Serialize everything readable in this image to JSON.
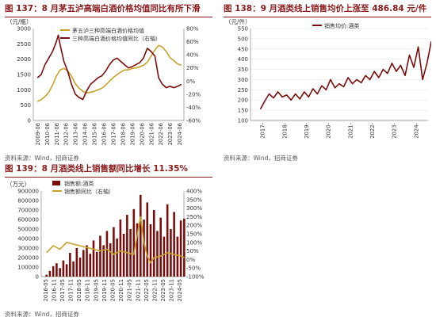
{
  "colors": {
    "maroon": "#7b0c0c",
    "gold": "#c9a227",
    "title": "#8b1a1a",
    "axis": "#888888"
  },
  "source_text": "资料来源：Wind，招商证券",
  "chart_data": [
    {
      "id": "c137",
      "type": "line",
      "title": "图 137：8 月茅五泸高端白酒价格均值同比有所下滑",
      "unit_left": "（元/瓶）",
      "y_left_ticks": [
        "0",
        "500",
        "1000",
        "1500",
        "2000",
        "2500",
        "3000"
      ],
      "y_right_ticks": [
        "-60%",
        "-40%",
        "-20%",
        "0%",
        "20%",
        "40%",
        "60%",
        "80%"
      ],
      "ylim_left": [
        0,
        3000
      ],
      "ylim_right": [
        -60,
        80
      ],
      "x_ticks": [
        "2009-06",
        "2010-06",
        "2011-06",
        "2012-06",
        "2013-06",
        "2014-06",
        "2015-06",
        "2016-06",
        "2017-06",
        "2018-06",
        "2019-06",
        "2020-06",
        "2021-06",
        "2022-06",
        "2023-06",
        "2024-06"
      ],
      "legend": [
        "茅五泸三种高端白酒价格均值",
        "三种高端白酒价格均值同比（右轴）"
      ],
      "series": [
        {
          "name": "茅五泸三种高端白酒价格均值",
          "axis": "left",
          "x": [
            2009.4,
            2009.8,
            2010.2,
            2010.6,
            2011.0,
            2011.4,
            2011.8,
            2012.2,
            2012.6,
            2013.0,
            2013.4,
            2013.8,
            2014.2,
            2014.6,
            2015.0,
            2015.4,
            2015.8,
            2016.2,
            2016.6,
            2017.0,
            2017.4,
            2017.8,
            2018.2,
            2018.6,
            2019.0,
            2019.4,
            2019.8,
            2020.2,
            2020.6,
            2021.0,
            2021.4,
            2021.8,
            2022.2,
            2022.6,
            2023.0,
            2023.4,
            2023.8,
            2024.2,
            2024.6
          ],
          "y": [
            620,
            680,
            780,
            920,
            1150,
            1450,
            1650,
            1700,
            1620,
            1450,
            1200,
            1050,
            950,
            900,
            920,
            950,
            1000,
            1050,
            1150,
            1280,
            1400,
            1500,
            1580,
            1650,
            1650,
            1700,
            1720,
            1750,
            1800,
            1900,
            2100,
            2300,
            2450,
            2400,
            2250,
            2050,
            1950,
            1850,
            1800
          ]
        },
        {
          "name": "三种高端白酒价格均值同比（右轴）",
          "axis": "right",
          "x": [
            2009.4,
            2009.8,
            2010.2,
            2010.6,
            2011.0,
            2011.4,
            2011.6,
            2011.8,
            2012.2,
            2012.6,
            2013.0,
            2013.4,
            2013.8,
            2014.2,
            2014.6,
            2015.0,
            2015.4,
            2015.8,
            2016.2,
            2016.6,
            2017.0,
            2017.4,
            2017.8,
            2018.2,
            2018.6,
            2019.0,
            2019.4,
            2019.8,
            2020.2,
            2020.6,
            2021.0,
            2021.4,
            2021.8,
            2022.2,
            2022.6,
            2023.0,
            2023.4,
            2023.8,
            2024.2,
            2024.6
          ],
          "y": [
            5,
            10,
            25,
            35,
            45,
            60,
            70,
            55,
            30,
            15,
            -5,
            -20,
            -25,
            -28,
            -15,
            -5,
            0,
            5,
            8,
            15,
            25,
            32,
            35,
            30,
            25,
            20,
            22,
            25,
            28,
            35,
            50,
            45,
            38,
            5,
            -5,
            -10,
            -8,
            -10,
            -8,
            -5
          ]
        }
      ]
    },
    {
      "id": "c138",
      "type": "line",
      "title": "图 138：9 月酒类线上销售均价上涨至 486.84 元/件",
      "unit_left": "（元/件）",
      "y_left_ticks": [
        "100",
        "150",
        "200",
        "250",
        "300",
        "350",
        "400",
        "450",
        "500",
        "550"
      ],
      "ylim_left": [
        100,
        550
      ],
      "x_ticks": [
        "2017-",
        "2018-",
        "2019-",
        "2020-",
        "2021-",
        "2022-",
        "2023-",
        "2024-"
      ],
      "legend": [
        "销售均价:酒类"
      ],
      "series": [
        {
          "name": "销售均价:酒类",
          "axis": "left",
          "x": [
            2016.9,
            2017.1,
            2017.3,
            2017.5,
            2017.7,
            2017.9,
            2018.1,
            2018.3,
            2018.5,
            2018.7,
            2018.9,
            2019.1,
            2019.3,
            2019.5,
            2019.7,
            2019.9,
            2020.1,
            2020.3,
            2020.5,
            2020.7,
            2020.9,
            2021.1,
            2021.3,
            2021.5,
            2021.7,
            2021.9,
            2022.1,
            2022.3,
            2022.5,
            2022.7,
            2022.9,
            2023.1,
            2023.3,
            2023.5,
            2023.7,
            2023.9,
            2024.1,
            2024.3,
            2024.5,
            2024.7
          ],
          "y": [
            155,
            195,
            230,
            210,
            240,
            215,
            225,
            200,
            230,
            205,
            240,
            215,
            255,
            230,
            270,
            250,
            300,
            260,
            280,
            265,
            310,
            280,
            300,
            285,
            320,
            300,
            340,
            310,
            350,
            330,
            380,
            340,
            370,
            320,
            420,
            360,
            460,
            300,
            380,
            487
          ]
        }
      ]
    },
    {
      "id": "c139",
      "type": "bar",
      "title": "图 139：8 月酒类线上销售额同比增长 11.35%",
      "unit_left": "（万元）",
      "y_left_ticks": [
        "0",
        "100000",
        "200000",
        "300000",
        "400000",
        "500000",
        "600000",
        "700000",
        "800000",
        "900000"
      ],
      "y_right_ticks": [
        "-100%",
        "-50%",
        "0%",
        "50%",
        "100%",
        "150%",
        "200%",
        "250%",
        "300%",
        "350%",
        "400%"
      ],
      "ylim_left": [
        0,
        900000
      ],
      "ylim_right": [
        -100,
        400
      ],
      "x_ticks": [
        "2016-05",
        "2016-11",
        "2017-05",
        "2017-11",
        "2018-05",
        "2018-11",
        "2019-05",
        "2019-11",
        "2020-05",
        "2020-11",
        "2021-05",
        "2021-11",
        "2022-05",
        "2022-11",
        "2023-05",
        "2023-11",
        "2024-05"
      ],
      "legend": [
        "销售额:酒类",
        "销售额同比（右轴）"
      ],
      "series": [
        {
          "name": "销售额:酒类",
          "axis": "left",
          "x": [
            2016.4,
            2016.6,
            2016.8,
            2017.0,
            2017.2,
            2017.4,
            2017.6,
            2017.8,
            2018.0,
            2018.2,
            2018.4,
            2018.6,
            2018.8,
            2019.0,
            2019.2,
            2019.4,
            2019.6,
            2019.8,
            2020.0,
            2020.2,
            2020.4,
            2020.6,
            2020.8,
            2021.0,
            2021.2,
            2021.4,
            2021.6,
            2021.8,
            2022.0,
            2022.2,
            2022.4,
            2022.6,
            2022.8,
            2023.0,
            2023.2,
            2023.4,
            2023.6,
            2023.8,
            2024.0,
            2024.2,
            2024.4,
            2024.6
          ],
          "y": [
            20000,
            60000,
            110000,
            140000,
            90000,
            170000,
            130000,
            250000,
            160000,
            300000,
            200000,
            280000,
            330000,
            240000,
            380000,
            260000,
            430000,
            330000,
            480000,
            350000,
            520000,
            400000,
            600000,
            450000,
            650000,
            500000,
            710000,
            560000,
            860000,
            600000,
            780000,
            550000,
            700000,
            480000,
            620000,
            420000,
            760000,
            500000,
            680000,
            420000,
            590000,
            610000
          ]
        },
        {
          "name": "销售额同比（右轴）",
          "axis": "right",
          "x": [
            2016.4,
            2016.8,
            2017.2,
            2017.6,
            2018.0,
            2018.4,
            2018.8,
            2019.2,
            2019.6,
            2020.0,
            2020.4,
            2020.8,
            2021.2,
            2021.6,
            2022.0,
            2022.2,
            2022.4,
            2022.6,
            2022.8,
            2023.2,
            2023.6,
            2024.0,
            2024.4,
            2024.6
          ],
          "y": [
            40,
            80,
            60,
            100,
            90,
            80,
            70,
            60,
            50,
            60,
            30,
            50,
            40,
            30,
            250,
            100,
            20,
            -20,
            10,
            20,
            40,
            30,
            20,
            11
          ]
        }
      ]
    }
  ]
}
